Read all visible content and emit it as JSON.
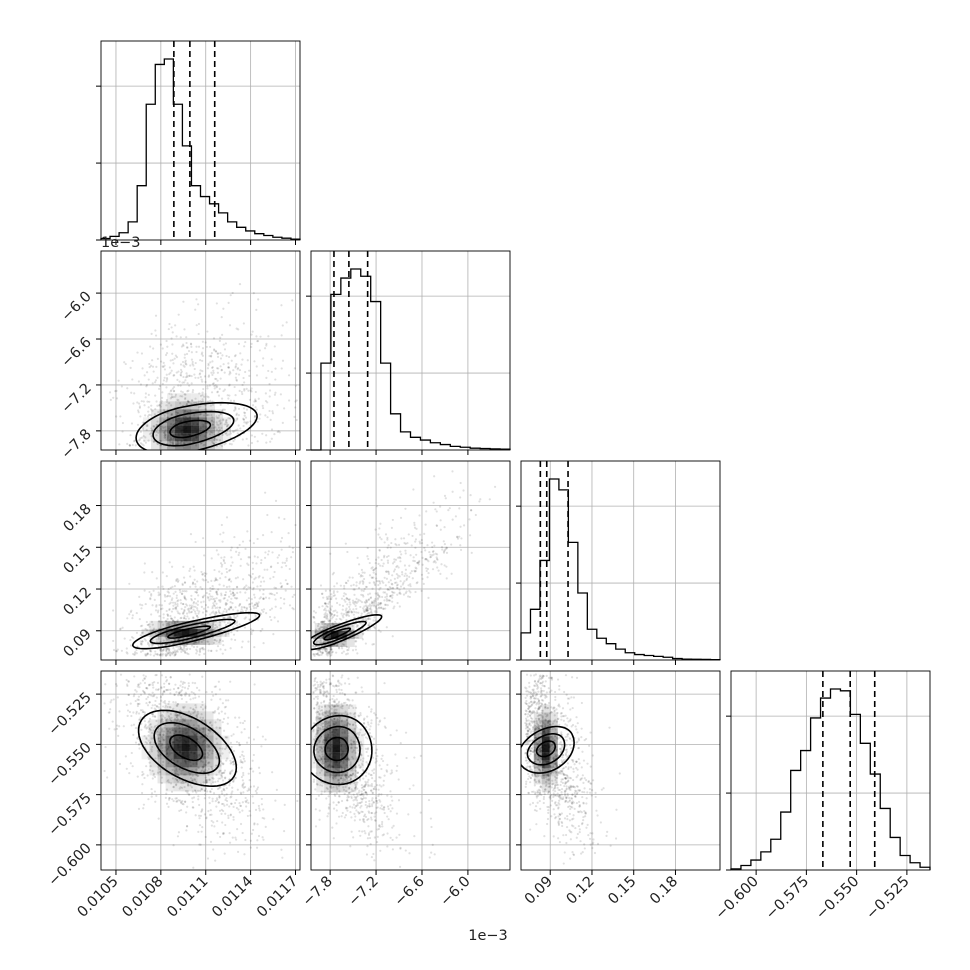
{
  "chart_data": {
    "type": "corner",
    "grid": true,
    "parameters": [
      {
        "range": [
          0.0104,
          0.01173
        ],
        "ticks": [
          {
            "value": 0.0105,
            "label": "0.0105"
          },
          {
            "value": 0.0108,
            "label": "0.0108"
          },
          {
            "value": 0.0111,
            "label": "0.0111"
          },
          {
            "value": 0.0114,
            "label": "0.0114"
          },
          {
            "value": 0.0117,
            "label": "0.0117"
          }
        ],
        "quantiles": [
          0.010887,
          0.010994,
          0.01116
        ]
      },
      {
        "range": [
          -8.05,
          -5.45
        ],
        "offset_label": "1e−3",
        "ticks": [
          {
            "value": -7.8,
            "label": "−7.8"
          },
          {
            "value": -7.2,
            "label": "−7.2"
          },
          {
            "value": -6.6,
            "label": "−6.6"
          },
          {
            "value": -6.0,
            "label": "−6.0"
          }
        ],
        "quantiles": [
          -7.75,
          -7.555,
          -7.31
        ]
      },
      {
        "range": [
          0.069,
          0.212
        ],
        "ticks": [
          {
            "value": 0.09,
            "label": "0.09"
          },
          {
            "value": 0.12,
            "label": "0.12"
          },
          {
            "value": 0.15,
            "label": "0.15"
          },
          {
            "value": 0.18,
            "label": "0.18"
          }
        ],
        "quantiles": [
          0.0829,
          0.0875,
          0.1028
        ]
      },
      {
        "range": [
          -0.6125,
          -0.5135
        ],
        "ticks": [
          {
            "value": -0.6,
            "label": "−0.600"
          },
          {
            "value": -0.575,
            "label": "−0.575"
          },
          {
            "value": -0.55,
            "label": "−0.550"
          },
          {
            "value": -0.525,
            "label": "−0.525"
          }
        ],
        "quantiles": [
          -0.5668,
          -0.5532,
          -0.541
        ]
      }
    ],
    "histograms": [
      [
        0.008,
        0.02,
        0.04,
        0.1,
        0.3,
        0.75,
        0.97,
        1.0,
        0.75,
        0.52,
        0.3,
        0.24,
        0.2,
        0.15,
        0.1,
        0.07,
        0.05,
        0.035,
        0.025,
        0.015,
        0.01,
        0.005
      ],
      [
        0.0,
        0.48,
        0.86,
        0.95,
        1.0,
        0.96,
        0.82,
        0.48,
        0.2,
        0.1,
        0.07,
        0.055,
        0.04,
        0.03,
        0.02,
        0.015,
        0.01,
        0.008,
        0.006,
        0.005
      ],
      [
        0.15,
        0.28,
        0.55,
        1.0,
        0.94,
        0.65,
        0.37,
        0.17,
        0.12,
        0.09,
        0.06,
        0.04,
        0.03,
        0.025,
        0.02,
        0.015,
        0.008,
        0.005,
        0.004,
        0.003,
        0.002
      ],
      [
        0.006,
        0.025,
        0.055,
        0.1,
        0.17,
        0.32,
        0.55,
        0.66,
        0.84,
        0.95,
        1.0,
        0.99,
        0.86,
        0.7,
        0.53,
        0.34,
        0.18,
        0.08,
        0.04,
        0.015
      ]
    ],
    "histogram_peak_tick_level": 0.85,
    "correlations": [
      {
        "pair": [
          0,
          1
        ],
        "center": [
          0.010975,
          -7.78
        ],
        "contour_scale": [
          0.00022,
          0.36
        ],
        "rho": 0.25,
        "spread": [
          0.0002,
          0.42
        ],
        "skew": 0.42,
        "bounds": [
          0.01045,
          0.01172,
          -8.0,
          -5.6
        ]
      },
      {
        "pair": [
          0,
          2
        ],
        "center": [
          0.010965,
          0.0885
        ],
        "contour_scale": [
          0.00023,
          0.0085
        ],
        "rho": 0.7,
        "spread": [
          0.00024,
          0.02
        ],
        "skew": 0.45,
        "bounds": [
          0.01048,
          0.0117,
          0.072,
          0.205
        ]
      },
      {
        "pair": [
          0,
          3
        ],
        "center": [
          0.010965,
          -0.5515
        ],
        "contour_scale": [
          0.00022,
          0.018
        ],
        "rho": -0.55,
        "spread": [
          0.00022,
          0.02
        ],
        "skew": 0.1,
        "bounds": [
          0.01042,
          0.01172,
          -0.612,
          -0.515
        ]
      },
      {
        "pair": [
          1,
          2
        ],
        "center": [
          -7.74,
          0.087
        ],
        "contour_scale": [
          0.28,
          0.007
        ],
        "rho": 0.88,
        "spread": [
          0.42,
          0.023
        ],
        "skew": 0.55,
        "bounds": [
          -8.02,
          -5.5,
          0.072,
          0.205
        ]
      },
      {
        "pair": [
          1,
          3
        ],
        "center": [
          -7.72,
          -0.552
        ],
        "contour_scale": [
          0.26,
          0.021
        ],
        "rho": -0.6,
        "spread": [
          0.3,
          0.02
        ],
        "skew": 0.2,
        "bounds": [
          -8.02,
          -5.5,
          -0.612,
          -0.515
        ]
      },
      {
        "pair": [
          2,
          3
        ],
        "center": [
          0.0868,
          -0.552
        ],
        "contour_scale": [
          0.0085,
          0.018
        ],
        "rho": -0.58,
        "spread": [
          0.012,
          0.019
        ],
        "skew": 0.25,
        "bounds": [
          0.072,
          0.205,
          -0.612,
          -0.515
        ]
      }
    ],
    "contour_levels": [
      0.5,
      1.0,
      1.5
    ],
    "colors": {
      "ink": "#000000",
      "grid": "#b0b0b0",
      "points": "#000000",
      "density": "#000000"
    }
  }
}
